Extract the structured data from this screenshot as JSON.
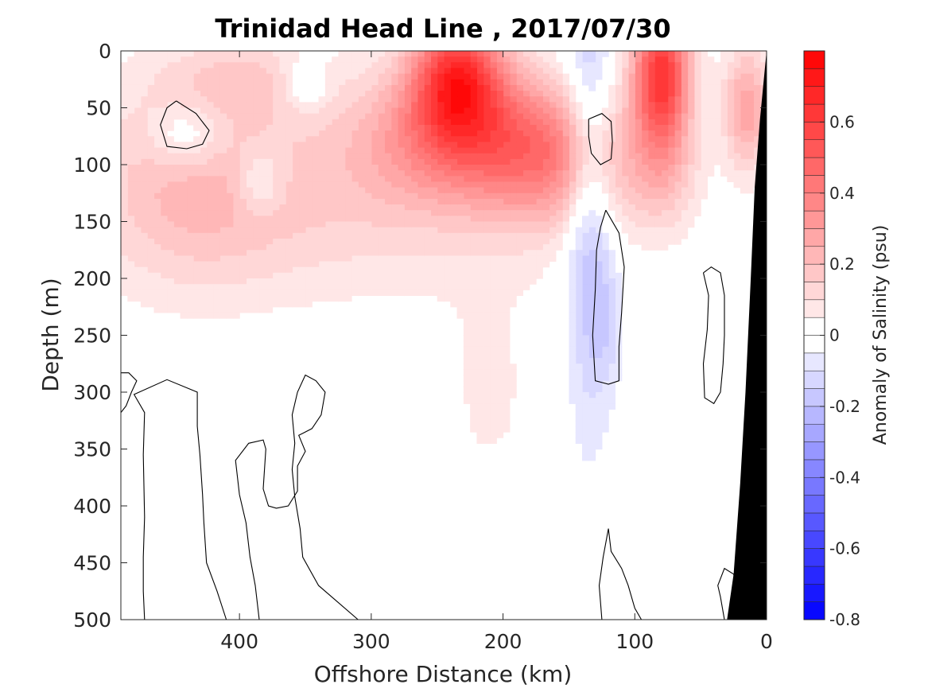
{
  "chart_data": {
    "type": "heatmap",
    "title": "Trinidad Head Line , 2017/07/30",
    "xlabel": "Offshore Distance (km)",
    "ylabel": "Depth (m)",
    "x_reversed": true,
    "y_reversed": true,
    "xlim": [
      490,
      0
    ],
    "ylim": [
      500,
      0
    ],
    "x_ticks": [
      400,
      300,
      200,
      100,
      0
    ],
    "y_ticks": [
      0,
      50,
      100,
      150,
      200,
      250,
      300,
      350,
      400,
      450,
      500
    ],
    "colorbar": {
      "label": "Anomaly of Salinity (psu)",
      "range": [
        -0.8,
        0.8
      ],
      "ticks": [
        0.6,
        0.4,
        0.2,
        0,
        -0.2,
        -0.4,
        -0.6,
        -0.8
      ],
      "levels": 32,
      "colormap": "blue-white-red",
      "colors": {
        "positive": "#ff0000",
        "zero": "#ffffff",
        "negative": "#0000ff"
      }
    },
    "bottom_topography_color": "#000000",
    "anomaly_field": {
      "background": 0,
      "blobs": [
        {
          "x": 235,
          "depth": 20,
          "value": 0.55,
          "rx": 35,
          "rdepth": 55
        },
        {
          "x": 225,
          "depth": 75,
          "value": 0.38,
          "rx": 85,
          "rdepth": 60
        },
        {
          "x": 160,
          "depth": 100,
          "value": 0.22,
          "rx": 55,
          "rdepth": 60
        },
        {
          "x": 80,
          "depth": 20,
          "value": 0.62,
          "rx": 22,
          "rdepth": 60
        },
        {
          "x": 80,
          "depth": 105,
          "value": 0.18,
          "rx": 28,
          "rdepth": 55
        },
        {
          "x": 440,
          "depth": 110,
          "value": 0.17,
          "rx": 75,
          "rdepth": 95
        },
        {
          "x": 330,
          "depth": 140,
          "value": 0.12,
          "rx": 150,
          "rdepth": 80
        },
        {
          "x": 15,
          "depth": 50,
          "value": 0.28,
          "rx": 18,
          "rdepth": 55
        },
        {
          "x": 395,
          "depth": 25,
          "value": 0.12,
          "rx": 60,
          "rdepth": 35
        },
        {
          "x": 210,
          "depth": 300,
          "value": 0.06,
          "rx": 40,
          "rdepth": 110
        },
        {
          "x": 440,
          "depth": 75,
          "value": -0.16,
          "rx": 28,
          "rdepth": 30
        },
        {
          "x": 350,
          "depth": 30,
          "value": -0.14,
          "rx": 18,
          "rdepth": 22
        },
        {
          "x": 385,
          "depth": 115,
          "value": -0.14,
          "rx": 18,
          "rdepth": 28
        },
        {
          "x": 135,
          "depth": 120,
          "value": -0.22,
          "rx": 18,
          "rdepth": 200
        },
        {
          "x": 120,
          "depth": 240,
          "value": -0.08,
          "rx": 14,
          "rdepth": 60
        }
      ]
    },
    "zero_contours": [
      [
        [
          448,
          44
        ],
        [
          433,
          55
        ],
        [
          423,
          70
        ],
        [
          428,
          82
        ],
        [
          440,
          86
        ],
        [
          455,
          84
        ],
        [
          460,
          65
        ],
        [
          455,
          50
        ],
        [
          448,
          44
        ]
      ],
      [
        [
          135,
          60
        ],
        [
          125,
          55
        ],
        [
          118,
          62
        ],
        [
          117,
          80
        ],
        [
          118,
          95
        ],
        [
          126,
          100
        ],
        [
          133,
          90
        ],
        [
          135,
          75
        ],
        [
          135,
          60
        ]
      ],
      [
        [
          122,
          140
        ],
        [
          112,
          160
        ],
        [
          108,
          190
        ],
        [
          110,
          230
        ],
        [
          112,
          260
        ],
        [
          112,
          290
        ],
        [
          120,
          293
        ],
        [
          130,
          290
        ],
        [
          132,
          250
        ],
        [
          130,
          210
        ],
        [
          129,
          175
        ],
        [
          126,
          155
        ],
        [
          122,
          140
        ]
      ],
      [
        [
          48,
          195
        ],
        [
          42,
          190
        ],
        [
          35,
          195
        ],
        [
          32,
          215
        ],
        [
          32,
          250
        ],
        [
          33,
          275
        ],
        [
          35,
          300
        ],
        [
          40,
          310
        ],
        [
          47,
          305
        ],
        [
          48,
          275
        ],
        [
          45,
          245
        ],
        [
          44,
          215
        ],
        [
          48,
          195
        ]
      ],
      [
        [
          490,
          283
        ],
        [
          484,
          283
        ],
        [
          478,
          290
        ],
        [
          482,
          300
        ],
        [
          486,
          312
        ],
        [
          490,
          318
        ]
      ],
      [
        [
          472,
          500
        ],
        [
          473,
          475
        ],
        [
          473,
          445
        ],
        [
          472,
          410
        ],
        [
          473,
          355
        ],
        [
          472,
          318
        ],
        [
          480,
          302
        ],
        [
          455,
          289
        ],
        [
          432,
          300
        ],
        [
          432,
          330
        ],
        [
          430,
          355
        ],
        [
          428,
          390
        ],
        [
          427,
          415
        ],
        [
          425,
          450
        ],
        [
          417,
          475
        ],
        [
          410,
          500
        ]
      ],
      [
        [
          385,
          500
        ],
        [
          388,
          470
        ],
        [
          392,
          445
        ],
        [
          395,
          415
        ],
        [
          400,
          390
        ],
        [
          403,
          360
        ],
        [
          393,
          345
        ],
        [
          382,
          342
        ],
        [
          380,
          350
        ],
        [
          382,
          385
        ],
        [
          378,
          400
        ],
        [
          372,
          402
        ],
        [
          363,
          400
        ],
        [
          356,
          387
        ],
        [
          356,
          365
        ],
        [
          350,
          352
        ],
        [
          355,
          338
        ],
        [
          345,
          332
        ],
        [
          338,
          320
        ],
        [
          335,
          300
        ],
        [
          342,
          290
        ],
        [
          350,
          285
        ],
        [
          356,
          300
        ],
        [
          360,
          320
        ],
        [
          358,
          345
        ],
        [
          360,
          368
        ],
        [
          358,
          392
        ],
        [
          354,
          420
        ],
        [
          352,
          445
        ],
        [
          340,
          470
        ],
        [
          310,
          500
        ]
      ],
      [
        [
          125,
          500
        ],
        [
          127,
          470
        ],
        [
          124,
          445
        ],
        [
          120,
          420
        ],
        [
          118,
          440
        ],
        [
          110,
          455
        ],
        [
          105,
          470
        ],
        [
          100,
          490
        ],
        [
          95,
          500
        ]
      ],
      [
        [
          32,
          500
        ],
        [
          35,
          480
        ],
        [
          37,
          470
        ],
        [
          32,
          455
        ],
        [
          25,
          460
        ],
        [
          22,
          475
        ],
        [
          22,
          500
        ]
      ]
    ]
  }
}
